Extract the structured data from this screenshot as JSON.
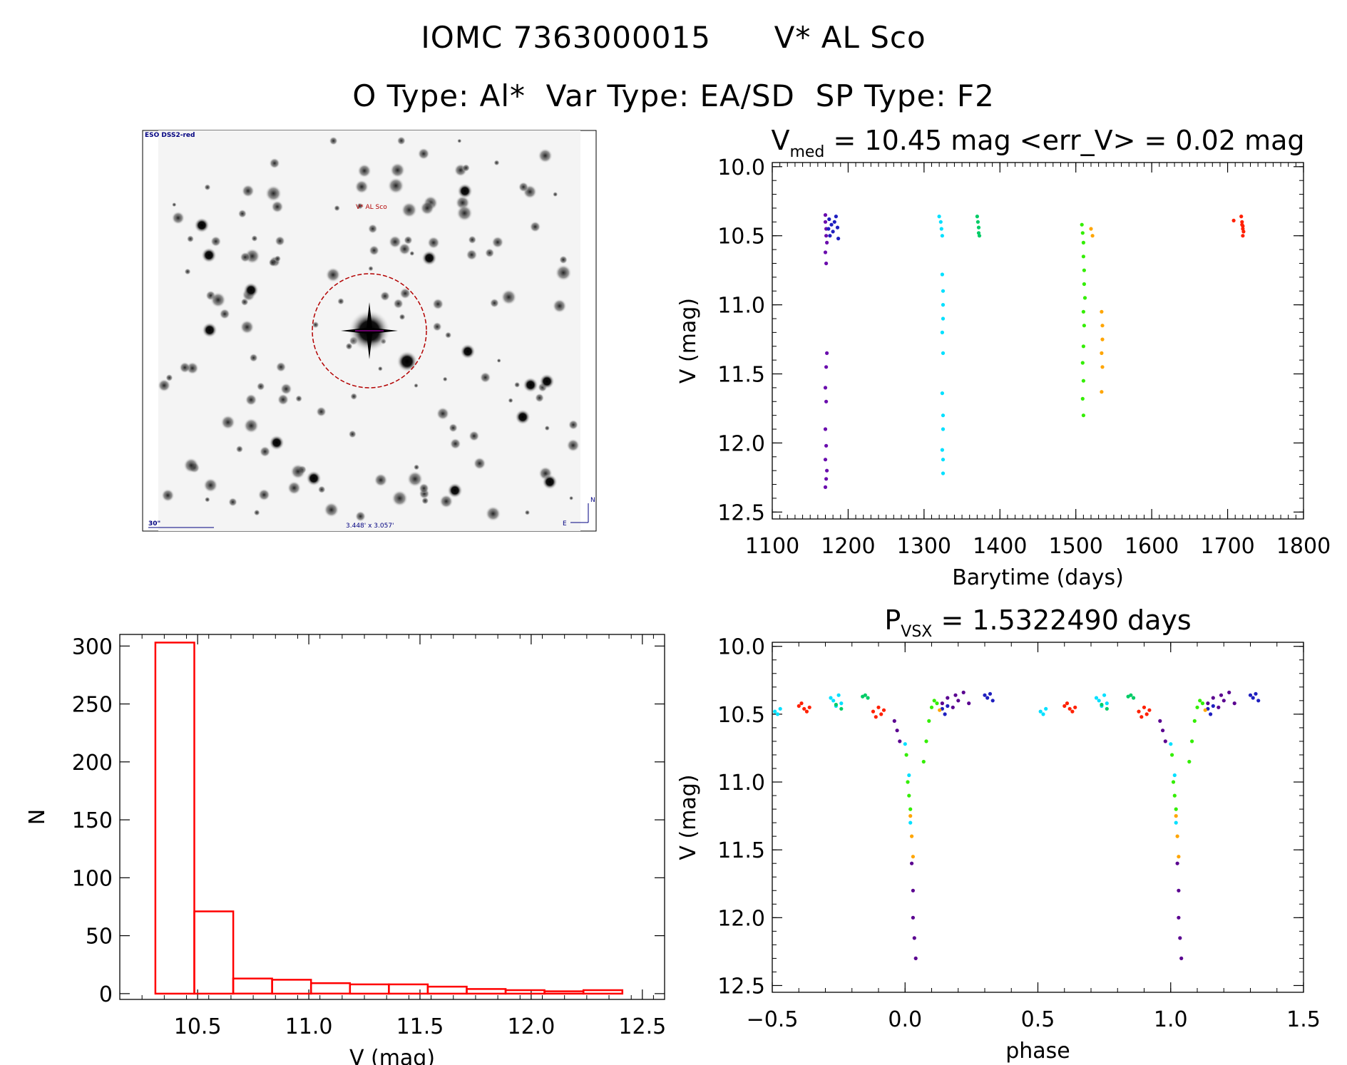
{
  "header": {
    "line1_id": "IOMC 7363000015",
    "line1_name": "V* AL Sco",
    "line2": "O Type: Al*  Var Type: EA/SD  SP Type: F2"
  },
  "image_panel": {
    "survey_label": "ESO DSS2-red",
    "star_label": "V* AL Sco",
    "scale_label": "30\"",
    "field_label": "3.448' x 3.057'",
    "north_label": "N",
    "east_label": "E"
  },
  "colors": {
    "frame": "#000000",
    "hist": "#ff0000",
    "circle": "#b30000",
    "dss_text": "#000080"
  },
  "chart_data": [
    {
      "id": "lightcurve",
      "type": "scatter",
      "title_main": "V",
      "title_sub": "med",
      "title_rest": " = 10.45 mag <err_V> = 0.02 mag",
      "xlabel": "Barytime (days)",
      "ylabel": "V (mag)",
      "xlim": [
        1100,
        1800
      ],
      "ylim": [
        12.55,
        9.97
      ],
      "xticks": [
        1100,
        1200,
        1300,
        1400,
        1500,
        1600,
        1700,
        1800
      ],
      "xtick_labels": [
        "1100",
        "1200",
        "1300",
        "1400",
        "1500",
        "1600",
        "1700",
        "1800"
      ],
      "yticks": [
        10.0,
        10.5,
        11.0,
        11.5,
        12.0,
        12.5
      ],
      "ytick_labels": [
        "10.0",
        "10.5",
        "11.0",
        "11.5",
        "12.0",
        "12.5"
      ],
      "series": [
        {
          "name": "s1",
          "color": "#6a0dad",
          "x": [
            1170,
            1170,
            1171,
            1171,
            1172,
            1170,
            1171,
            1172,
            1171,
            1170,
            1171,
            1170,
            1171,
            1170,
            1172,
            1171,
            1170
          ],
          "y": [
            10.35,
            10.4,
            10.45,
            10.5,
            10.55,
            10.62,
            10.7,
            11.35,
            11.45,
            11.6,
            11.7,
            11.9,
            12.02,
            12.12,
            12.2,
            12.26,
            12.32
          ]
        },
        {
          "name": "s2",
          "color": "#1f1fbf",
          "x": [
            1174,
            1175,
            1176,
            1178,
            1180,
            1182,
            1184,
            1186,
            1187
          ],
          "y": [
            10.45,
            10.38,
            10.5,
            10.42,
            10.47,
            10.4,
            10.36,
            10.44,
            10.52
          ]
        },
        {
          "name": "s3",
          "color": "#00e0ff",
          "x": [
            1320,
            1322,
            1323,
            1324,
            1324,
            1325,
            1325,
            1325,
            1324,
            1325,
            1324,
            1325,
            1325,
            1324,
            1325,
            1325
          ],
          "y": [
            10.36,
            10.4,
            10.45,
            10.5,
            10.78,
            10.9,
            11.0,
            11.1,
            11.2,
            11.35,
            11.64,
            11.8,
            11.9,
            12.05,
            12.12,
            12.22
          ]
        },
        {
          "name": "s4",
          "color": "#00cc66",
          "x": [
            1370,
            1371,
            1372,
            1372,
            1373
          ],
          "y": [
            10.36,
            10.4,
            10.44,
            10.48,
            10.5
          ]
        },
        {
          "name": "s5",
          "color": "#33ee00",
          "x": [
            1508,
            1509,
            1510,
            1510,
            1511,
            1511,
            1512,
            1510,
            1511,
            1510,
            1509,
            1510,
            1509,
            1510
          ],
          "y": [
            10.42,
            10.48,
            10.55,
            10.65,
            10.75,
            10.85,
            10.95,
            11.05,
            11.15,
            11.3,
            11.42,
            11.55,
            11.68,
            11.8
          ]
        },
        {
          "name": "s6",
          "color": "#ffa500",
          "x": [
            1520,
            1522,
            1534,
            1535,
            1535,
            1534,
            1535,
            1534
          ],
          "y": [
            10.45,
            10.5,
            11.05,
            11.15,
            11.25,
            11.35,
            11.45,
            11.63
          ]
        },
        {
          "name": "s7",
          "color": "#ff2000",
          "x": [
            1708,
            1718,
            1719,
            1720,
            1720,
            1721,
            1720,
            1719
          ],
          "y": [
            10.39,
            10.36,
            10.4,
            10.43,
            10.45,
            10.47,
            10.5,
            10.42
          ]
        }
      ]
    },
    {
      "id": "histogram",
      "type": "bar",
      "xlabel": "V (mag)",
      "ylabel": "N",
      "xlim": [
        10.15,
        12.6
      ],
      "ylim": [
        -5,
        310
      ],
      "xticks": [
        10.5,
        11.0,
        11.5,
        12.0,
        12.5
      ],
      "xtick_labels": [
        "10.5",
        "11.0",
        "11.5",
        "12.0",
        "12.5"
      ],
      "yticks": [
        0,
        50,
        100,
        150,
        200,
        250,
        300
      ],
      "ytick_labels": [
        "0",
        "50",
        "100",
        "150",
        "200",
        "250",
        "300"
      ],
      "bin_edges": [
        10.31,
        10.485,
        10.66,
        10.835,
        11.01,
        11.185,
        11.36,
        11.535,
        11.71,
        11.885,
        12.06,
        12.235,
        12.41
      ],
      "counts": [
        303,
        71,
        13,
        12,
        9,
        8,
        8,
        6,
        4,
        3,
        2,
        3
      ]
    },
    {
      "id": "phased",
      "type": "scatter",
      "title_main": "P",
      "title_sub": "VSX",
      "title_rest": " = 1.5322490 days",
      "xlabel": "phase",
      "ylabel": "V (mag)",
      "xlim": [
        -0.5,
        1.5
      ],
      "ylim": [
        12.55,
        9.97
      ],
      "xticks": [
        -0.5,
        0.0,
        0.5,
        1.0,
        1.5
      ],
      "xtick_labels": [
        "−0.5",
        "0.0",
        "0.5",
        "1.0",
        "1.5"
      ],
      "yticks": [
        10.0,
        10.5,
        11.0,
        11.5,
        12.0,
        12.5
      ],
      "ytick_labels": [
        "10.0",
        "10.5",
        "11.0",
        "11.5",
        "12.0",
        "12.5"
      ],
      "series": [
        {
          "name": "p-cyan",
          "color": "#00e0ff",
          "x": [
            -0.49,
            -0.48,
            -0.47,
            -0.28,
            -0.27,
            -0.26,
            -0.25,
            -0.24,
            0.0,
            0.015,
            0.02
          ],
          "y": [
            10.48,
            10.5,
            10.46,
            10.38,
            10.4,
            10.44,
            10.36,
            10.42,
            10.72,
            10.95,
            11.3
          ]
        },
        {
          "name": "p-red",
          "color": "#ff2000",
          "x": [
            -0.4,
            -0.39,
            -0.38,
            -0.37,
            -0.36,
            -0.12,
            -0.11,
            -0.1,
            -0.09,
            -0.08
          ],
          "y": [
            10.44,
            10.42,
            10.46,
            10.48,
            10.45,
            10.48,
            10.52,
            10.45,
            10.5,
            10.47
          ]
        },
        {
          "name": "p-green",
          "color": "#00cc66",
          "x": [
            -0.16,
            -0.15,
            -0.14,
            -0.26,
            -0.24
          ],
          "y": [
            10.37,
            10.36,
            10.38,
            10.43,
            10.46
          ]
        },
        {
          "name": "p-lime",
          "color": "#33ee00",
          "x": [
            0.07,
            0.08,
            0.09,
            0.1,
            0.11,
            0.12,
            0.005,
            0.01,
            0.015,
            0.02
          ],
          "y": [
            10.85,
            10.7,
            10.55,
            10.45,
            10.4,
            10.42,
            10.8,
            11.0,
            11.1,
            11.2
          ]
        },
        {
          "name": "p-purple",
          "color": "#5a0090",
          "x": [
            -0.04,
            -0.03,
            -0.02,
            0.025,
            0.03,
            0.03,
            0.035,
            0.04,
            0.14,
            0.16,
            0.18,
            0.19,
            0.2,
            0.22,
            0.24
          ],
          "y": [
            10.55,
            10.62,
            10.7,
            11.6,
            11.8,
            12.0,
            12.15,
            12.3,
            10.42,
            10.38,
            10.45,
            10.36,
            10.4,
            10.34,
            10.42
          ]
        },
        {
          "name": "p-blue",
          "color": "#1f1fbf",
          "x": [
            0.14,
            0.15,
            0.16,
            0.3,
            0.31,
            0.32,
            0.33
          ],
          "y": [
            10.46,
            10.5,
            10.44,
            10.36,
            10.38,
            10.35,
            10.4
          ]
        },
        {
          "name": "p-orange",
          "color": "#ffa500",
          "x": [
            0.02,
            0.025,
            0.03,
            0.13
          ],
          "y": [
            11.25,
            11.4,
            11.55,
            10.47
          ]
        }
      ]
    }
  ]
}
